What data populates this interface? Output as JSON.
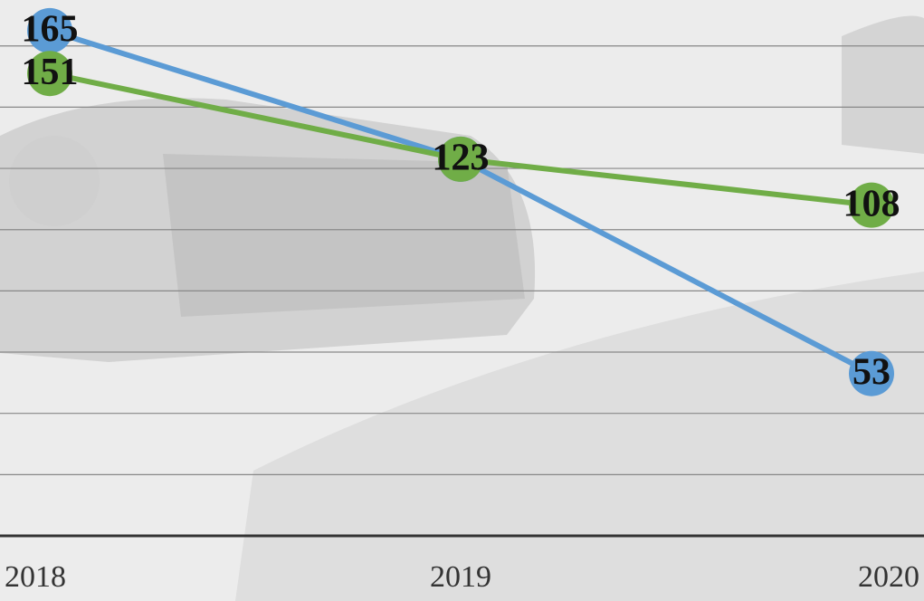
{
  "chart_data": {
    "type": "line",
    "categories": [
      "2018",
      "2019",
      "2020"
    ],
    "series": [
      {
        "color": "#5b9bd5",
        "values": [
          165,
          123,
          53
        ]
      },
      {
        "color": "#70ad47",
        "values": [
          151,
          123,
          108
        ]
      }
    ],
    "ylim": [
      0,
      175
    ],
    "yticks": [
      0,
      20,
      40,
      60,
      80,
      100,
      120,
      140,
      160
    ],
    "grid": true
  }
}
